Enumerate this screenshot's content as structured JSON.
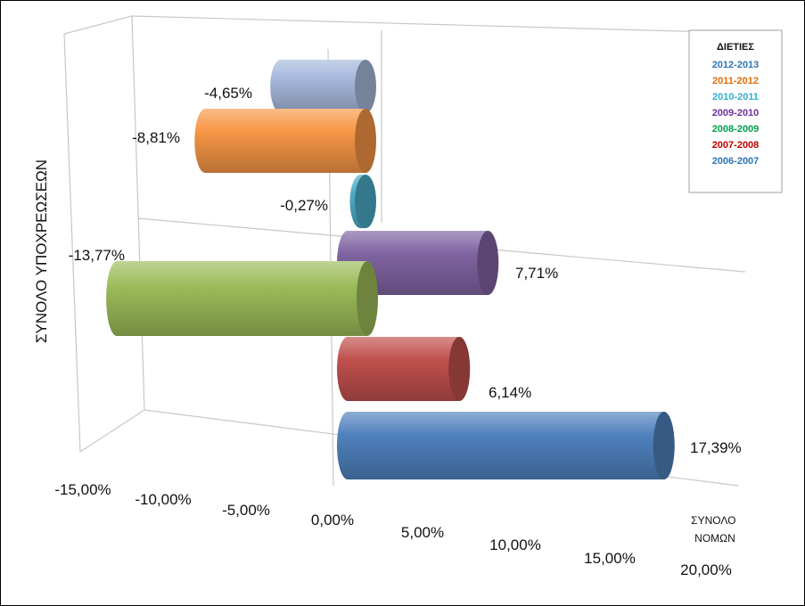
{
  "chart_data": {
    "type": "bar",
    "orientation": "horizontal-3d-cylinder",
    "xlabel": "ΣΥΝΟΛΟ ΝΟΜΩΝ",
    "xlabel_lines": [
      "ΣΥΝΟΛΟ",
      "ΝΟΜΩΝ"
    ],
    "ylabel": "ΣΥΝΟΛΟ ΥΠΟΧΡΕΩΣΕΩΝ",
    "xlim": [
      -15,
      20
    ],
    "x_ticks": [
      "-15,00%",
      "-10,00%",
      "-5,00%",
      "0,00%",
      "5,00%",
      "10,00%",
      "15,00%",
      "20,00%"
    ],
    "legend_title": "ΔΙΕΤΙΕΣ",
    "legend_position": "top-right",
    "grid": true,
    "series": [
      {
        "name": "2012-2013",
        "value": -4.65,
        "label": "-4,65%",
        "color": "#a6b9dc",
        "legend_color": "#2e75b6"
      },
      {
        "name": "2011-2012",
        "value": -8.81,
        "label": "-8,81%",
        "color": "#f79646",
        "legend_color": "#e36c09"
      },
      {
        "name": "2010-2011",
        "value": -0.27,
        "label": "-0,27%",
        "color": "#4bacc6",
        "legend_color": "#31b0cc"
      },
      {
        "name": "2009-2010",
        "value": 7.71,
        "label": "7,71%",
        "color": "#8064a2",
        "legend_color": "#7030a0"
      },
      {
        "name": "2008-2009",
        "value": -13.77,
        "label": "-13,77%",
        "color": "#9bbb59",
        "legend_color": "#00a050"
      },
      {
        "name": "2007-2008",
        "value": 6.14,
        "label": "6,14%",
        "color": "#c0504d",
        "legend_color": "#c00000"
      },
      {
        "name": "2006-2007",
        "value": 17.39,
        "label": "17,39%",
        "color": "#4f81bd",
        "legend_color": "#2e75b6"
      }
    ]
  }
}
